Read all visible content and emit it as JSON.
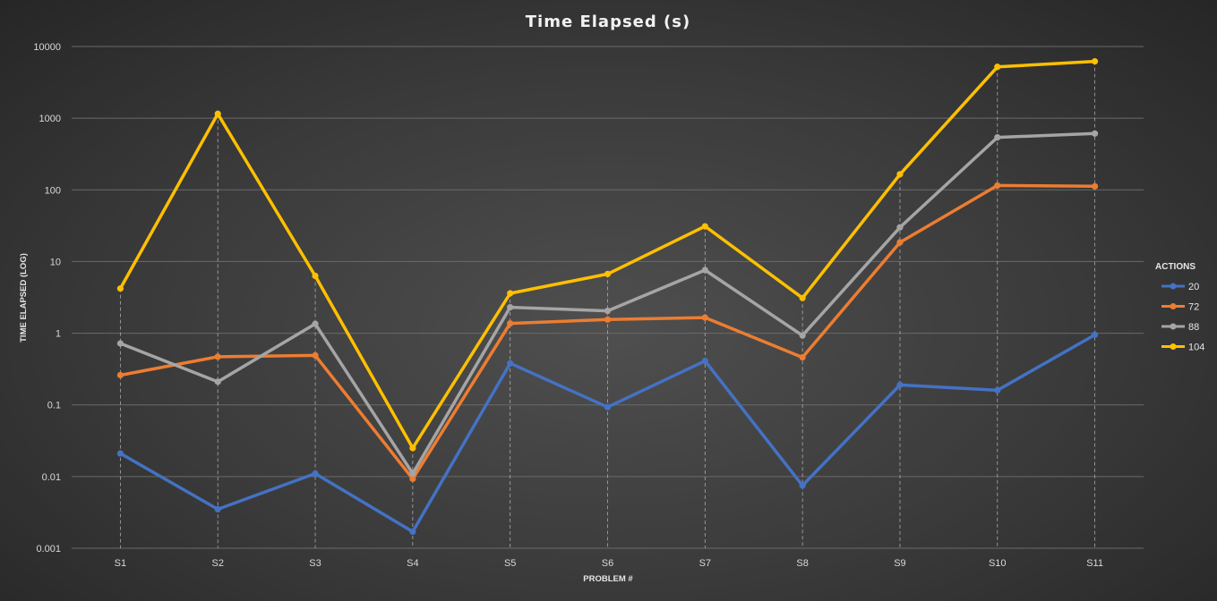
{
  "chart_data": {
    "type": "line",
    "title": "Time Elapsed (s)",
    "xlabel": "PROBLEM #",
    "ylabel": "TIME ELAPSED (LOG)",
    "yscale": "log",
    "ylim": [
      0.001,
      10000
    ],
    "ytick_labels": [
      "0.001",
      "0.01",
      "0.1",
      "1",
      "10",
      "100",
      "1000",
      "10000"
    ],
    "grid": "horizontal",
    "drop_lines": true,
    "legend_title": "ACTIONS",
    "legend_position": "right",
    "categories": [
      "S1",
      "S2",
      "S3",
      "S4",
      "S5",
      "S6",
      "S7",
      "S8",
      "S9",
      "S10",
      "S11"
    ],
    "series": [
      {
        "name": "20",
        "color": "#4472c4",
        "values": [
          0.021,
          0.0035,
          0.011,
          0.0017,
          0.38,
          0.093,
          0.41,
          0.0075,
          0.19,
          0.16,
          0.95
        ]
      },
      {
        "name": "72",
        "color": "#ed7d31",
        "values": [
          0.26,
          0.47,
          0.49,
          0.0093,
          1.37,
          1.55,
          1.65,
          0.46,
          18.5,
          115,
          112
        ]
      },
      {
        "name": "88",
        "color": "#a5a5a5",
        "values": [
          0.72,
          0.21,
          1.35,
          0.011,
          2.3,
          2.05,
          7.6,
          0.93,
          30,
          540,
          610
        ]
      },
      {
        "name": "104",
        "color": "#ffc000",
        "values": [
          4.2,
          1150,
          6.3,
          0.025,
          3.6,
          6.7,
          31,
          3.1,
          165,
          5200,
          6200
        ]
      }
    ]
  }
}
